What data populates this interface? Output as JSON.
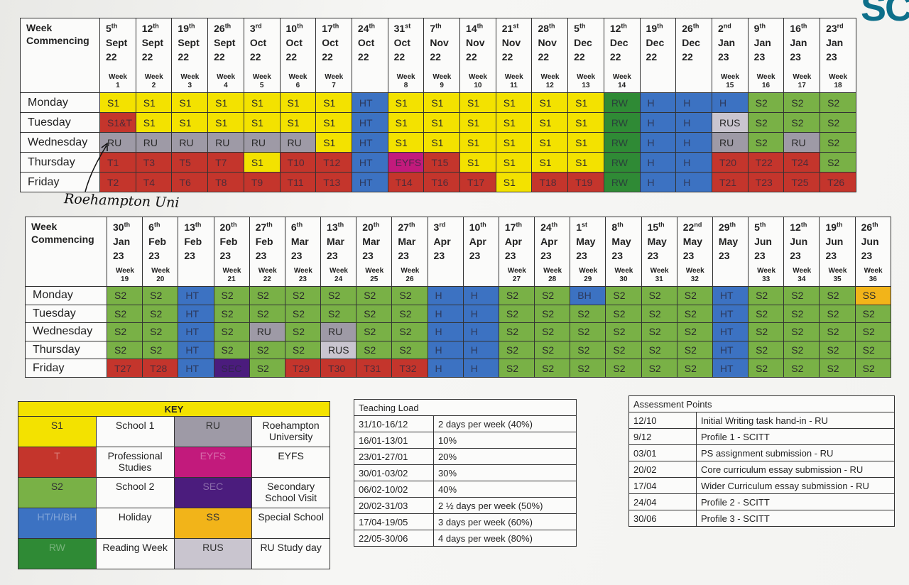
{
  "logo": "SC",
  "annotation": "Roehampton Uni",
  "schedule_tables": [
    {
      "corner": "Week Commencing",
      "weeks": [
        {
          "day": "5",
          "ord": "th",
          "month": "Sept",
          "year": "22",
          "week": "Week 1"
        },
        {
          "day": "12",
          "ord": "th",
          "month": "Sept",
          "year": "22",
          "week": "Week 2"
        },
        {
          "day": "19",
          "ord": "th",
          "month": "Sept",
          "year": "22",
          "week": "Week 3"
        },
        {
          "day": "26",
          "ord": "th",
          "month": "Sept",
          "year": "22",
          "week": "Week 4"
        },
        {
          "day": "3",
          "ord": "rd",
          "month": "Oct",
          "year": "22",
          "week": "Week 5"
        },
        {
          "day": "10",
          "ord": "th",
          "month": "Oct",
          "year": "22",
          "week": "Week 6"
        },
        {
          "day": "17",
          "ord": "th",
          "month": "Oct",
          "year": "22",
          "week": "Week 7"
        },
        {
          "day": "24",
          "ord": "th",
          "month": "Oct",
          "year": "22"
        },
        {
          "day": "31",
          "ord": "st",
          "month": "Oct",
          "year": "22",
          "week": "Week 8"
        },
        {
          "day": "7",
          "ord": "th",
          "month": "Nov",
          "year": "22",
          "week": "Week 9"
        },
        {
          "day": "14",
          "ord": "th",
          "month": "Nov",
          "year": "22",
          "week": "Week 10"
        },
        {
          "day": "21",
          "ord": "st",
          "month": "Nov",
          "year": "22",
          "week": "Week 11"
        },
        {
          "day": "28",
          "ord": "th",
          "month": "Nov",
          "year": "22",
          "week": "Week 12"
        },
        {
          "day": "5",
          "ord": "th",
          "month": "Dec",
          "year": "22",
          "week": "Week 13"
        },
        {
          "day": "12",
          "ord": "th",
          "month": "Dec",
          "year": "22",
          "week": "Week 14"
        },
        {
          "day": "19",
          "ord": "th",
          "month": "Dec",
          "year": "22"
        },
        {
          "day": "26",
          "ord": "th",
          "month": "Dec",
          "year": "22"
        },
        {
          "day": "2",
          "ord": "nd",
          "month": "Jan",
          "year": "23",
          "week": "Week 15"
        },
        {
          "day": "9",
          "ord": "th",
          "month": "Jan",
          "year": "23",
          "week": "Week 16"
        },
        {
          "day": "16",
          "ord": "th",
          "month": "Jan",
          "year": "23",
          "week": "Week 17"
        },
        {
          "day": "23",
          "ord": "rd",
          "month": "Jan",
          "year": "23",
          "week": "Week 18"
        }
      ],
      "rows": [
        {
          "day": "Monday",
          "cells": [
            "S1",
            "S1",
            "S1",
            "S1",
            "S1",
            "S1",
            "S1",
            "HT",
            "S1",
            "S1",
            "S1",
            "S1",
            "S1",
            "S1",
            "RW",
            "H",
            "H",
            "H",
            "S2",
            "S2",
            "S2"
          ]
        },
        {
          "day": "Tuesday",
          "cells": [
            "S1&T",
            "S1",
            "S1",
            "S1",
            "S1",
            "S1",
            "S1",
            "HT",
            "S1",
            "S1",
            "S1",
            "S1",
            "S1",
            "S1",
            "RW",
            "H",
            "H",
            "RUS",
            "S2",
            "S2",
            "S2"
          ]
        },
        {
          "day": "Wednesday",
          "cells": [
            "RU",
            "RU",
            "RU",
            "RU",
            "RU",
            "RU",
            "S1",
            "HT",
            "S1",
            "S1",
            "S1",
            "S1",
            "S1",
            "S1",
            "RW",
            "H",
            "H",
            "RU",
            "S2",
            "RU",
            "S2"
          ]
        },
        {
          "day": "Thursday",
          "cells": [
            "T1",
            "T3",
            "T5",
            "T7",
            "S1",
            "T10",
            "T12",
            "HT",
            "EYFS",
            "T15",
            "S1",
            "S1",
            "S1",
            "S1",
            "RW",
            "H",
            "H",
            "T20",
            "T22",
            "T24",
            "S2"
          ]
        },
        {
          "day": "Friday",
          "cells": [
            "T2",
            "T4",
            "T6",
            "T8",
            "T9",
            "T11",
            "T13",
            "HT",
            "T14",
            "T16",
            "T17",
            "S1",
            "T18",
            "T19",
            "RW",
            "H",
            "H",
            "T21",
            "T23",
            "T25",
            "T26"
          ]
        }
      ]
    },
    {
      "corner": "Week Commencing",
      "weeks": [
        {
          "day": "30",
          "ord": "th",
          "month": "Jan",
          "year": "23",
          "week": "Week 19"
        },
        {
          "day": "6",
          "ord": "th",
          "month": "Feb",
          "year": "23",
          "week": "Week 20"
        },
        {
          "day": "13",
          "ord": "th",
          "month": "Feb",
          "year": "23"
        },
        {
          "day": "20",
          "ord": "th",
          "month": "Feb",
          "year": "23",
          "week": "Week 21"
        },
        {
          "day": "27",
          "ord": "th",
          "month": "Feb",
          "year": "23",
          "week": "Week 22"
        },
        {
          "day": "6",
          "ord": "th",
          "month": "Mar",
          "year": "23",
          "week": "Week 23"
        },
        {
          "day": "13",
          "ord": "th",
          "month": "Mar",
          "year": "23",
          "week": "Week 24"
        },
        {
          "day": "20",
          "ord": "th",
          "month": "Mar",
          "year": "23",
          "week": "Week 25"
        },
        {
          "day": "27",
          "ord": "th",
          "month": "Mar",
          "year": "23",
          "week": "Week 26"
        },
        {
          "day": "3",
          "ord": "rd",
          "month": "Apr",
          "year": "23"
        },
        {
          "day": "10",
          "ord": "th",
          "month": "Apr",
          "year": "23"
        },
        {
          "day": "17",
          "ord": "th",
          "month": "Apr",
          "year": "23",
          "week": "Week 27"
        },
        {
          "day": "24",
          "ord": "th",
          "month": "Apr",
          "year": "23",
          "week": "Week 28"
        },
        {
          "day": "1",
          "ord": "st",
          "month": "May",
          "year": "23",
          "week": "Week 29"
        },
        {
          "day": "8",
          "ord": "th",
          "month": "May",
          "year": "23",
          "week": "Week 30"
        },
        {
          "day": "15",
          "ord": "th",
          "month": "May",
          "year": "23",
          "week": "Week 31"
        },
        {
          "day": "22",
          "ord": "nd",
          "month": "May",
          "year": "23",
          "week": "Week 32"
        },
        {
          "day": "29",
          "ord": "th",
          "month": "May",
          "year": "23"
        },
        {
          "day": "5",
          "ord": "th",
          "month": "Jun",
          "year": "23",
          "week": "Week 33"
        },
        {
          "day": "12",
          "ord": "th",
          "month": "Jun",
          "year": "23",
          "week": "Week 34"
        },
        {
          "day": "19",
          "ord": "th",
          "month": "Jun",
          "year": "23",
          "week": "Week 35"
        },
        {
          "day": "26",
          "ord": "th",
          "month": "Jun",
          "year": "23",
          "week": "Week 36"
        }
      ],
      "rows": [
        {
          "day": "Monday",
          "cells": [
            "S2",
            "S2",
            "HT",
            "S2",
            "S2",
            "S2",
            "S2",
            "S2",
            "S2",
            "H",
            "H",
            "S2",
            "S2",
            "BH",
            "S2",
            "S2",
            "S2",
            "HT",
            "S2",
            "S2",
            "S2",
            "SS"
          ]
        },
        {
          "day": "Tuesday",
          "cells": [
            "S2",
            "S2",
            "HT",
            "S2",
            "S2",
            "S2",
            "S2",
            "S2",
            "S2",
            "H",
            "H",
            "S2",
            "S2",
            "S2",
            "S2",
            "S2",
            "S2",
            "HT",
            "S2",
            "S2",
            "S2",
            "S2"
          ]
        },
        {
          "day": "Wednesday",
          "cells": [
            "S2",
            "S2",
            "HT",
            "S2",
            "RU",
            "S2",
            "RU",
            "S2",
            "S2",
            "H",
            "H",
            "S2",
            "S2",
            "S2",
            "S2",
            "S2",
            "S2",
            "HT",
            "S2",
            "S2",
            "S2",
            "S2"
          ]
        },
        {
          "day": "Thursday",
          "cells": [
            "S2",
            "S2",
            "HT",
            "S2",
            "S2",
            "S2",
            "RUS",
            "S2",
            "S2",
            "H",
            "H",
            "S2",
            "S2",
            "S2",
            "S2",
            "S2",
            "S2",
            "HT",
            "S2",
            "S2",
            "S2",
            "S2"
          ]
        },
        {
          "day": "Friday",
          "cells": [
            "T27",
            "T28",
            "HT",
            "SEC",
            "S2",
            "T29",
            "T30",
            "T31",
            "T32",
            "H",
            "H",
            "S2",
            "S2",
            "S2",
            "S2",
            "S2",
            "S2",
            "HT",
            "S2",
            "S2",
            "S2",
            "S2"
          ]
        }
      ]
    }
  ],
  "key": {
    "title": "KEY",
    "items": [
      {
        "code": "S1",
        "label": "School 1",
        "color": "#f3e200"
      },
      {
        "code": "T",
        "label": "Professional Studies",
        "color": "#c4352c"
      },
      {
        "code": "S2",
        "label": "School 2",
        "color": "#79b146"
      },
      {
        "code": "HT/H/BH",
        "label": "Holiday",
        "color": "#3c72c2"
      },
      {
        "code": "RW",
        "label": "Reading Week",
        "color": "#2f8a35"
      },
      {
        "code": "RU",
        "label": "Roehampton University",
        "color": "#9e9aa6"
      },
      {
        "code": "EYFS",
        "label": "EYFS",
        "color": "#c21a7c"
      },
      {
        "code": "SEC",
        "label": "Secondary School Visit",
        "color": "#4b1c7d"
      },
      {
        "code": "SS",
        "label": "Special School",
        "color": "#f2b419"
      },
      {
        "code": "RUS",
        "label": "RU Study day",
        "color": "#c9c5cf"
      }
    ]
  },
  "teaching_load": {
    "title": "Teaching Load",
    "rows": [
      [
        "31/10-16/12",
        "2 days per week (40%)"
      ],
      [
        "16/01-13/01",
        "10%"
      ],
      [
        "23/01-27/01",
        "20%"
      ],
      [
        "30/01-03/02",
        "30%"
      ],
      [
        "06/02-10/02",
        "40%"
      ],
      [
        "20/02-31/03",
        "2 ½ days per week (50%)"
      ],
      [
        "17/04-19/05",
        "3 days per week (60%)"
      ],
      [
        "22/05-30/06",
        "4 days per week (80%)"
      ]
    ]
  },
  "assessment_points": {
    "title": "Assessment Points",
    "rows": [
      [
        "12/10",
        "Initial Writing task hand-in - RU"
      ],
      [
        "9/12",
        "Profile 1 - SCITT"
      ],
      [
        "03/01",
        "PS assignment submission - RU"
      ],
      [
        "20/02",
        "Core curriculum essay submission - RU"
      ],
      [
        "17/04",
        "Wider Curriculum essay submission - RU"
      ],
      [
        "24/04",
        "Profile 2 - SCITT"
      ],
      [
        "30/06",
        "Profile 3 - SCITT"
      ]
    ]
  }
}
